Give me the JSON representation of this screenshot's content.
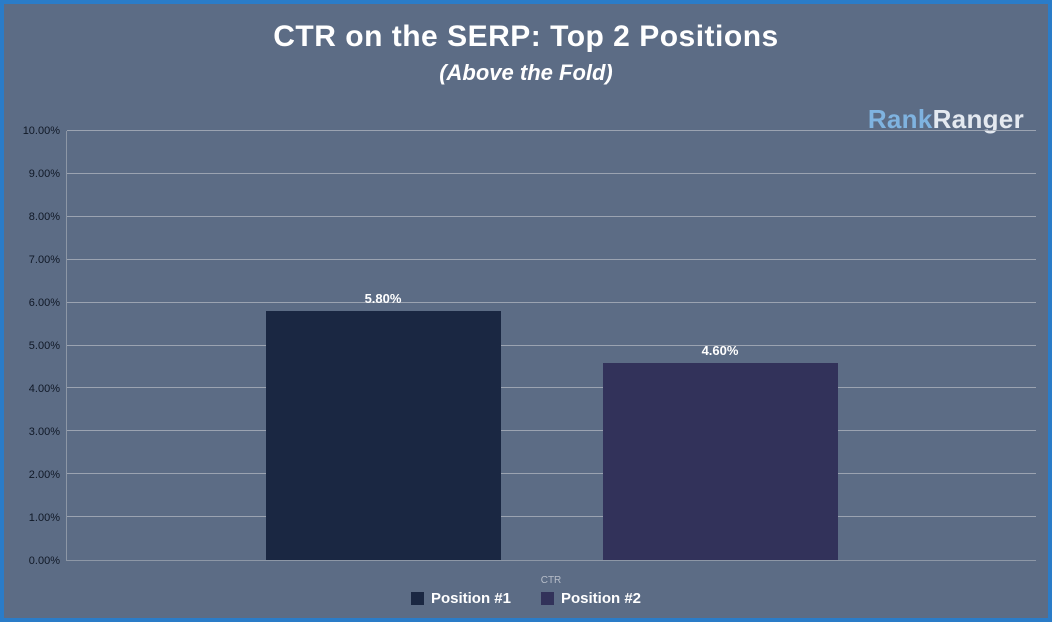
{
  "logo": {
    "part1": "Rank",
    "part2": "Ranger"
  },
  "chart_data": {
    "type": "bar",
    "title": "CTR on the SERP: Top 2 Positions",
    "subtitle": "(Above the Fold)",
    "xlabel": "CTR",
    "ylabel": "",
    "ylim": [
      0,
      10
    ],
    "y_ticks": [
      "0.00%",
      "1.00%",
      "2.00%",
      "3.00%",
      "4.00%",
      "5.00%",
      "6.00%",
      "7.00%",
      "8.00%",
      "9.00%",
      "10.00%"
    ],
    "grid": true,
    "legend_position": "bottom",
    "categories": [
      "Position #1",
      "Position #2"
    ],
    "series": [
      {
        "name": "Position #1",
        "value": 5.8,
        "label": "5.80%",
        "color": "#1a2742"
      },
      {
        "name": "Position #2",
        "value": 4.6,
        "label": "4.60%",
        "color": "#32325a"
      }
    ],
    "colors": {
      "background": "#5c6c85",
      "border": "#2a7cc8",
      "gridline": "#a6adb9",
      "axis": "#8d97a6",
      "title": "#ffffff",
      "tick_text": "#101826",
      "xlabel_text": "#b7bec9",
      "logo_rank": "#7fb3e0",
      "logo_ranger": "#e4e9f0"
    }
  }
}
